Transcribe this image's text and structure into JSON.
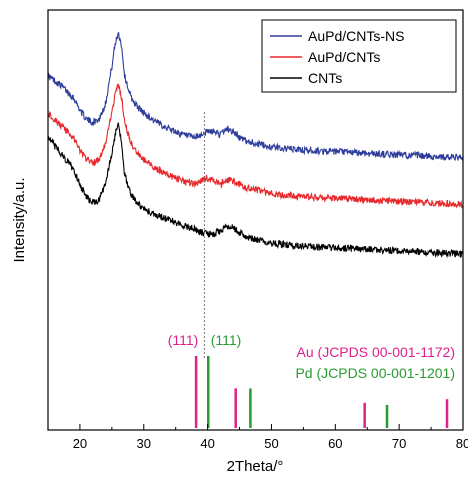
{
  "chart_data": {
    "type": "line",
    "xlabel": "2Theta/°",
    "ylabel": "Intensity/a.u.",
    "xlim": [
      15,
      80
    ],
    "xticks": [
      20,
      30,
      40,
      50,
      60,
      70,
      80
    ],
    "legend": {
      "placement": "top-right"
    },
    "reference_line_x": 39.5,
    "series": [
      {
        "name": "AuPd/CNTs-NS",
        "color": "#2e3d9c",
        "x": [
          15,
          17,
          19,
          20,
          21,
          22,
          23,
          24,
          25,
          25.5,
          26,
          26.5,
          27,
          28,
          29,
          30,
          32,
          34,
          36,
          38,
          39,
          40,
          41,
          42,
          43,
          44,
          45,
          46,
          48,
          50,
          55,
          60,
          65,
          70,
          75,
          80
        ],
        "y": [
          0.82,
          0.79,
          0.75,
          0.71,
          0.68,
          0.67,
          0.68,
          0.73,
          0.85,
          0.92,
          0.96,
          0.92,
          0.82,
          0.75,
          0.72,
          0.7,
          0.67,
          0.65,
          0.63,
          0.62,
          0.63,
          0.64,
          0.64,
          0.63,
          0.65,
          0.64,
          0.62,
          0.61,
          0.6,
          0.59,
          0.58,
          0.575,
          0.57,
          0.565,
          0.56,
          0.555
        ]
      },
      {
        "name": "AuPd/CNTs",
        "color": "#e8282b",
        "x": [
          15,
          17,
          19,
          20,
          21,
          22,
          23,
          24,
          25,
          25.5,
          26,
          26.5,
          27,
          28,
          29,
          30,
          32,
          34,
          36,
          38,
          39,
          40,
          41,
          42,
          43,
          44,
          45,
          46,
          48,
          50,
          55,
          60,
          65,
          70,
          75,
          80
        ],
        "y": [
          0.7,
          0.66,
          0.62,
          0.58,
          0.55,
          0.54,
          0.55,
          0.6,
          0.7,
          0.76,
          0.79,
          0.75,
          0.67,
          0.6,
          0.57,
          0.55,
          0.52,
          0.5,
          0.48,
          0.47,
          0.48,
          0.49,
          0.48,
          0.47,
          0.485,
          0.48,
          0.47,
          0.46,
          0.45,
          0.44,
          0.43,
          0.425,
          0.42,
          0.415,
          0.41,
          0.405
        ]
      },
      {
        "name": "CNTs",
        "color": "#000000",
        "x": [
          15,
          17,
          19,
          20,
          21,
          22,
          23,
          24,
          25,
          25.5,
          26,
          26.5,
          27,
          28,
          29,
          30,
          32,
          34,
          36,
          38,
          39,
          40,
          41,
          42,
          43,
          44,
          45,
          46,
          48,
          50,
          55,
          60,
          65,
          70,
          75,
          80
        ],
        "y": [
          0.62,
          0.57,
          0.52,
          0.47,
          0.43,
          0.41,
          0.42,
          0.47,
          0.57,
          0.63,
          0.66,
          0.61,
          0.5,
          0.44,
          0.41,
          0.39,
          0.37,
          0.355,
          0.34,
          0.325,
          0.315,
          0.31,
          0.31,
          0.32,
          0.335,
          0.33,
          0.315,
          0.3,
          0.29,
          0.28,
          0.27,
          0.265,
          0.26,
          0.255,
          0.25,
          0.245
        ]
      }
    ],
    "references": [
      {
        "name": "Au (JCPDS 00-001-1172)",
        "color": "#e0218a",
        "peaks": [
          {
            "x": 38.2,
            "h": 1.0,
            "label": "(111)"
          },
          {
            "x": 44.4,
            "h": 0.55
          },
          {
            "x": 64.6,
            "h": 0.35
          },
          {
            "x": 77.5,
            "h": 0.4
          }
        ]
      },
      {
        "name": "Pd (JCPDS 00-001-1201)",
        "color": "#2a9a33",
        "peaks": [
          {
            "x": 40.1,
            "h": 1.0,
            "label": "(111)"
          },
          {
            "x": 46.7,
            "h": 0.55
          },
          {
            "x": 68.1,
            "h": 0.32
          }
        ]
      }
    ]
  }
}
